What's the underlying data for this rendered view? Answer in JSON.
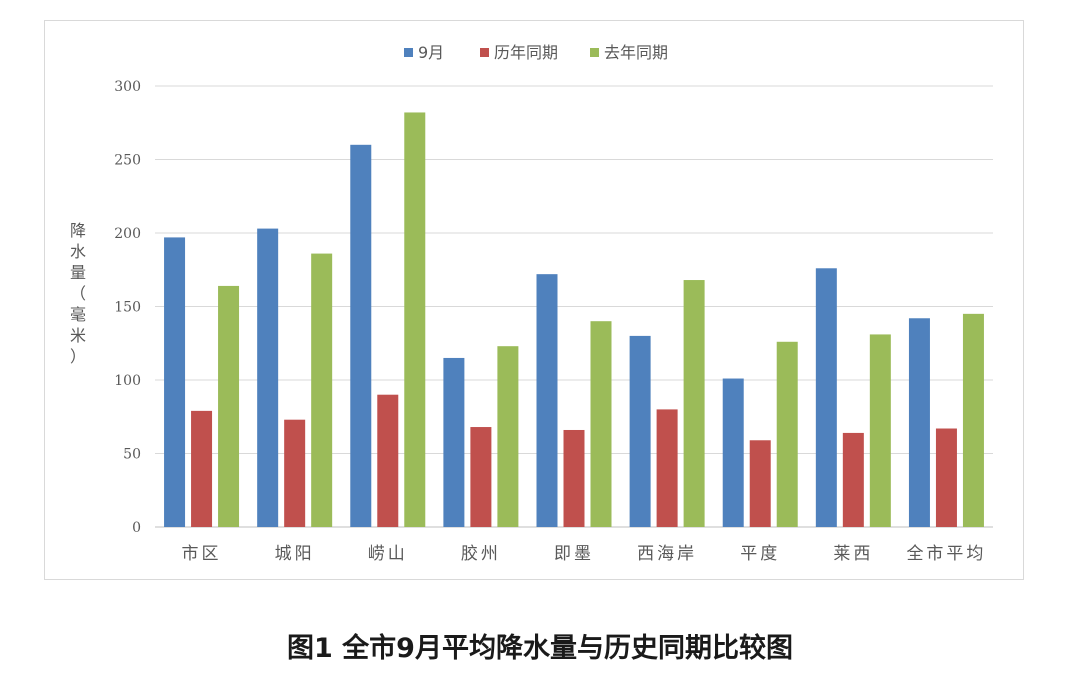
{
  "chart_data": {
    "type": "bar",
    "ylabel": "降水量（毫米）",
    "ylim": [
      0,
      300
    ],
    "yticks": [
      0,
      50,
      100,
      150,
      200,
      250,
      300
    ],
    "grid": true,
    "legend_position": "top",
    "categories": [
      "市区",
      "城阳",
      "崂山",
      "胶州",
      "即墨",
      "西海岸",
      "平度",
      "莱西",
      "全市平均"
    ],
    "series": [
      {
        "name": "9月",
        "color": "#4f81bd",
        "values": [
          197,
          203,
          260,
          115,
          172,
          130,
          101,
          176,
          142
        ]
      },
      {
        "name": "历年同期",
        "color": "#c0504d",
        "values": [
          79,
          73,
          90,
          68,
          66,
          80,
          59,
          64,
          67
        ]
      },
      {
        "name": "去年同期",
        "color": "#9bbb59",
        "values": [
          164,
          186,
          282,
          123,
          140,
          168,
          126,
          131,
          145
        ]
      }
    ]
  },
  "caption": "图1  全市9月平均降水量与历史同期比较图"
}
